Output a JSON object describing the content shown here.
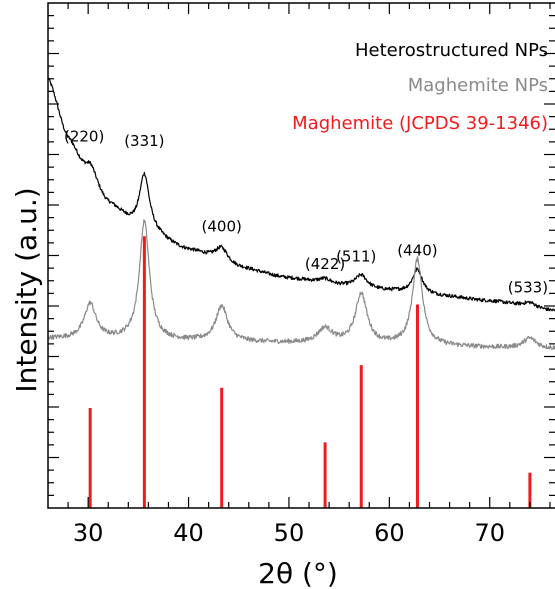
{
  "chart_data": {
    "type": "line",
    "xlabel": "2θ (°)",
    "ylabel": "Intensity (a.u.)",
    "xlim": [
      26,
      76.5
    ],
    "ylim": [
      0,
      1
    ],
    "x_ticks": [
      30,
      40,
      50,
      60,
      70
    ],
    "y_ticks_labeled": false,
    "grid": false,
    "legend_position": "top-right",
    "series": [
      {
        "name": "Heterostructured NPs",
        "color": "#000000",
        "style": "line",
        "background": [
          [
            26,
            0.85
          ],
          [
            28,
            0.73
          ],
          [
            30,
            0.65
          ],
          [
            32,
            0.6
          ],
          [
            35,
            0.555
          ],
          [
            40,
            0.51
          ],
          [
            45,
            0.475
          ],
          [
            50,
            0.455
          ],
          [
            55,
            0.44
          ],
          [
            60,
            0.43
          ],
          [
            65,
            0.42
          ],
          [
            70,
            0.41
          ],
          [
            76.5,
            0.39
          ]
        ],
        "peaks": [
          {
            "label": "(220)",
            "x": 30.2,
            "height": 0.035,
            "width": 0.8
          },
          {
            "label": "(331)",
            "x": 35.6,
            "height": 0.11,
            "width": 0.6
          },
          {
            "label": "(400)",
            "x": 43.3,
            "height": 0.03,
            "width": 0.8
          },
          {
            "label": "(422)",
            "x": 53.6,
            "height": 0.01,
            "width": 0.8
          },
          {
            "label": "(511)",
            "x": 57.2,
            "height": 0.025,
            "width": 0.7
          },
          {
            "label": "(440)",
            "x": 62.8,
            "height": 0.048,
            "width": 0.6
          },
          {
            "label": "(533)",
            "x": 74.0,
            "height": 0.01,
            "width": 0.8
          }
        ]
      },
      {
        "name": "Maghemite NPs",
        "color": "#8a8a8a",
        "style": "line",
        "background": [
          [
            26,
            0.335
          ],
          [
            40,
            0.33
          ],
          [
            60,
            0.322
          ],
          [
            76.5,
            0.315
          ]
        ],
        "peaks": [
          {
            "x": 30.2,
            "height": 0.07,
            "width": 0.7
          },
          {
            "x": 35.6,
            "height": 0.235,
            "width": 0.6
          },
          {
            "x": 43.3,
            "height": 0.07,
            "width": 0.7
          },
          {
            "x": 53.6,
            "height": 0.03,
            "width": 0.9
          },
          {
            "x": 57.2,
            "height": 0.1,
            "width": 0.7
          },
          {
            "x": 62.8,
            "height": 0.17,
            "width": 0.6
          },
          {
            "x": 74.0,
            "height": 0.02,
            "width": 0.8
          }
        ]
      },
      {
        "name": "Maghemite (JCPDS 39-1346)",
        "color": "#ee1c1c",
        "style": "stick",
        "points": [
          [
            30.2,
            0.198
          ],
          [
            35.6,
            0.538
          ],
          [
            43.3,
            0.238
          ],
          [
            53.6,
            0.13
          ],
          [
            57.2,
            0.283
          ],
          [
            62.8,
            0.403
          ],
          [
            74.0,
            0.07
          ]
        ]
      }
    ],
    "legend": [
      {
        "text": "Heterostructured NPs",
        "color": "#000000"
      },
      {
        "text": "Maghemite NPs",
        "color": "#8a8a8a"
      },
      {
        "text": "Maghemite (JCPDS 39-1346)",
        "color": "#ee1c1c"
      }
    ]
  }
}
